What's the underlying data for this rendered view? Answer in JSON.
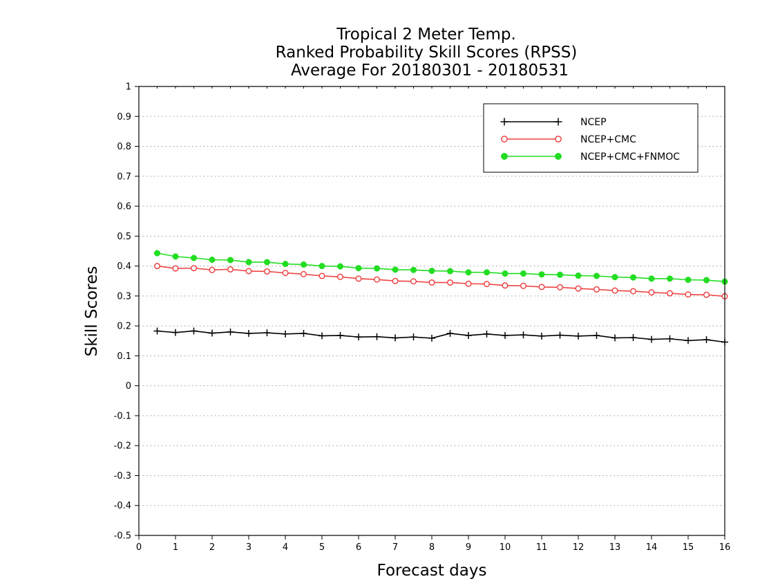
{
  "chart_data": {
    "type": "line",
    "title_lines": [
      "Tropical 2 Meter Temp.",
      "Ranked Probability Skill Scores (RPSS)",
      "Average For 20180301 - 20180531"
    ],
    "xlabel": "Forecast days",
    "ylabel": "Skill Scores",
    "xlim": [
      0,
      16
    ],
    "ylim": [
      -0.5,
      1
    ],
    "x_ticks": [
      0,
      1,
      2,
      3,
      4,
      5,
      6,
      7,
      8,
      9,
      10,
      11,
      12,
      13,
      14,
      15,
      16
    ],
    "x_tick_labels": [
      "0",
      "1",
      "2",
      "3",
      "4",
      "5",
      "6",
      "7",
      "8",
      "9",
      "10",
      "11",
      "12",
      "13",
      "14",
      "15",
      "16"
    ],
    "y_ticks": [
      -0.5,
      -0.4,
      -0.3,
      -0.2,
      -0.1,
      0,
      0.1,
      0.2,
      0.3,
      0.4,
      0.5,
      0.6,
      0.7,
      0.8,
      0.9,
      1
    ],
    "y_tick_labels": [
      "-0.5",
      "-0.4",
      "-0.3",
      "-0.2",
      "-0.1",
      "0",
      "0.1",
      "0.2",
      "0.3",
      "0.4",
      "0.5",
      "0.6",
      "0.7",
      "0.8",
      "0.9",
      "1"
    ],
    "grid": "horizontal dotted",
    "legend_position": "top-right",
    "x": [
      0.5,
      1,
      1.5,
      2,
      2.5,
      3,
      3.5,
      4,
      4.5,
      5,
      5.5,
      6,
      6.5,
      7,
      7.5,
      8,
      8.5,
      9,
      9.5,
      10,
      10.5,
      11,
      11.5,
      12,
      12.5,
      13,
      13.5,
      14,
      14.5,
      15,
      15.5,
      16
    ],
    "series": [
      {
        "name": "NCEP",
        "color": "#000000",
        "marker": "plus",
        "values": [
          0.183,
          0.178,
          0.183,
          0.176,
          0.18,
          0.175,
          0.177,
          0.173,
          0.175,
          0.167,
          0.168,
          0.163,
          0.164,
          0.16,
          0.163,
          0.159,
          0.175,
          0.168,
          0.173,
          0.168,
          0.17,
          0.166,
          0.169,
          0.166,
          0.168,
          0.16,
          0.161,
          0.155,
          0.157,
          0.151,
          0.154,
          0.146
        ]
      },
      {
        "name": "NCEP+CMC",
        "color": "#ee4444",
        "marker": "open-circle",
        "values": [
          0.4,
          0.392,
          0.393,
          0.387,
          0.389,
          0.383,
          0.382,
          0.377,
          0.373,
          0.367,
          0.364,
          0.358,
          0.355,
          0.35,
          0.349,
          0.345,
          0.345,
          0.341,
          0.34,
          0.335,
          0.334,
          0.33,
          0.329,
          0.325,
          0.322,
          0.318,
          0.316,
          0.312,
          0.309,
          0.305,
          0.304,
          0.299
        ]
      },
      {
        "name": "NCEP+CMC+FNMOC",
        "color": "#22dd22",
        "marker": "filled-circle",
        "values": [
          0.443,
          0.432,
          0.427,
          0.421,
          0.42,
          0.413,
          0.413,
          0.407,
          0.405,
          0.4,
          0.399,
          0.393,
          0.392,
          0.388,
          0.387,
          0.384,
          0.383,
          0.379,
          0.379,
          0.375,
          0.375,
          0.372,
          0.371,
          0.368,
          0.367,
          0.363,
          0.362,
          0.358,
          0.358,
          0.354,
          0.353,
          0.348
        ]
      }
    ]
  }
}
